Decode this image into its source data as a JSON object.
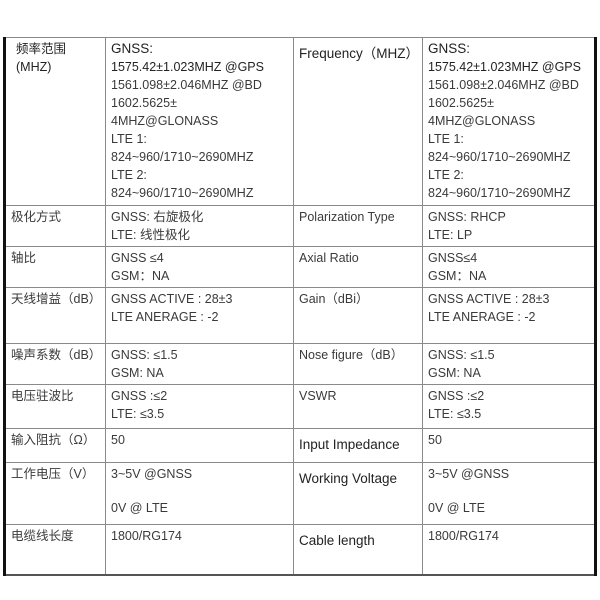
{
  "rows": [
    {
      "cn": [
        "频率范围",
        "(MHZ)"
      ],
      "cn_val": [
        "GNSS:",
        "1575.42±1.023MHZ @GPS",
        "1561.098±2.046MHZ @BD",
        "1602.5625±",
        "4MHZ@GLONASS",
        "LTE 1:",
        "824~960/1710~2690MHZ",
        "LTE 2:",
        "824~960/1710~2690MHZ"
      ],
      "en": "Frequency（MHZ）",
      "en_val": [
        "GNSS:",
        "1575.42±1.023MHZ @GPS",
        "1561.098±2.046MHZ @BD",
        "1602.5625±",
        "4MHZ@GLONASS",
        "LTE 1:",
        "824~960/1710~2690MHZ",
        "LTE 2:",
        "824~960/1710~2690MHZ"
      ]
    },
    {
      "cn": [
        "极化方式"
      ],
      "cn_val": [
        "GNSS: 右旋极化",
        "LTE: 线性极化"
      ],
      "en": "Polarization Type",
      "en_val": [
        "GNSS: RHCP",
        "LTE: LP"
      ]
    },
    {
      "cn": [
        "轴比"
      ],
      "cn_val": [
        "GNSS ≤4",
        "GSM：NA"
      ],
      "en": "Axial Ratio",
      "en_val": [
        "GNSS≤4",
        "GSM：NA"
      ]
    },
    {
      "cn": [
        "天线增益（dB）"
      ],
      "cn_val": [
        "GNSS ACTIVE : 28±3",
        "LTE ANERAGE : -2"
      ],
      "en": "Gain（dBi）",
      "en_val": [
        "GNSS ACTIVE : 28±3",
        "LTE ANERAGE : -2"
      ]
    },
    {
      "cn": [
        "噪声系数（dB）"
      ],
      "cn_val": [
        "GNSS: ≤1.5",
        "GSM: NA"
      ],
      "en": "Nose figure（dB）",
      "en_val": [
        "GNSS: ≤1.5",
        "GSM: NA"
      ]
    },
    {
      "cn": [
        "电压驻波比"
      ],
      "cn_val": [
        "GNSS :≤2",
        "LTE: ≤3.5"
      ],
      "en": "VSWR",
      "en_val": [
        "GNSS :≤2",
        "LTE: ≤3.5"
      ]
    },
    {
      "cn": [
        "输入阻抗（Ω）"
      ],
      "cn_val": [
        "50"
      ],
      "en": "Input Impedance",
      "en_val": [
        "50"
      ]
    },
    {
      "cn": [
        "工作电压（V）"
      ],
      "cn_val": [
        "3~5V @GNSS",
        "0V @ LTE"
      ],
      "en": "Working Voltage",
      "en_val": [
        "3~5V @GNSS",
        "0V @ LTE"
      ]
    },
    {
      "cn": [
        "电缆线长度"
      ],
      "cn_val": [
        "1800/RG174"
      ],
      "en": "Cable length",
      "en_val": [
        "1800/RG174"
      ]
    }
  ]
}
